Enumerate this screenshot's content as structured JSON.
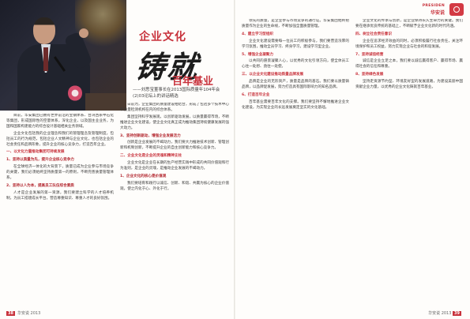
{
  "header": {
    "badge_en": "PRESIDEN",
    "badge_cn": "华安说"
  },
  "article": {
    "kicker": "企业文化",
    "big_title": "铸就",
    "subhead": "百年基业",
    "byline": "——刘思宝董事长在2013国际质量年104年会(2)03论坛上的讲话精选"
  },
  "left_page": {
    "col1": [
      {
        "type": "p",
        "text": "目前，华安集团已拥有世界前沿的宝钢体系、台湾西系中石化等集团，形成国际性的空量体系，深化企业，以及国主业业务，为国和国家构建能力的综合设计基础相关业务领域。"
      },
      {
        "type": "p",
        "text": "企业文化包括我的企业理念和我们的管理理念及管理制度，包括员工的行为规范，包括企业人文精神与企业文化，也包括企业的社会责任和品牌形象，提升企业的核心竞争力，打造百年企业。"
      },
      {
        "type": "h",
        "text": "一、以文化力量推动集团可持续发展"
      },
      {
        "type": "hsub",
        "text": "1、坚持以质量为先，提升企业核心竞争力"
      },
      {
        "type": "p",
        "text": "在全球经济一体化的大背景下，质量已成为企业参与市场竞争的关键，我们必须始终坚持质量第一的原则，不断完善质量管理体系。"
      },
      {
        "type": "hsub",
        "text": "2、坚持以人为本，提高员工队伍综合素质"
      },
      {
        "type": "p",
        "text": "人才是企业发展的第一资源，我们要建立科学的人才培养机制，为员工搭建成长平台，营造尊重知识、尊重人才的良好氛围。"
      }
    ],
    "col2": [
      {
        "type": "p",
        "text": "日前为，企业集团的质量建设相结合，形成了包括多个技术中心和质量检测机构在内的综合体系。"
      },
      {
        "type": "p",
        "text": "集团坚持科学发展观，以创新驱动发展，以质量赢得市场，不断推进企业文化建设，使企业文化真正成为推动集团持续健康发展的强大动力。"
      },
      {
        "type": "hsub",
        "text": "3、坚持创新驱动，增强企业发展活力"
      },
      {
        "type": "p",
        "text": "创新是企业发展的不竭动力，我们要大力推进技术创新、管理创新和机制创新，不断提升企业的自主创新能力和核心竞争力。"
      },
      {
        "type": "h",
        "text": "二、企业文化是企业的灵魂和精神支柱"
      },
      {
        "type": "p",
        "text": "企业文化是企业在长期的生产经营实践中形成的共同价值观和行为准则，是企业的灵魂，是推动企业发展的不竭动力。"
      },
      {
        "type": "hsub",
        "text": "1、企业文化的核心是价值观"
      },
      {
        "type": "p",
        "text": "我们要培育和践行以诚信、创新、和谐、共赢为核心的企业价值观，使之内化于心、外化于行。"
      }
    ]
  },
  "right_page": {
    "col1": [
      {
        "type": "p",
        "text": "领先的质量，是企业参与市场竞争的通行证。华安集团始终把质量作为企业的生命线，不断加强全面质量管理。"
      },
      {
        "type": "hnum",
        "text": "4、建立学习型组织"
      },
      {
        "type": "p",
        "text": "企业文化建设需要每一位员工的积极参与，我们要营造浓厚的学习氛围，推动全员学习、终身学习，建设学习型企业。"
      },
      {
        "type": "hnum",
        "text": "5、增强企业凝聚力"
      },
      {
        "type": "p",
        "text": "以共同的愿景凝聚人心，以优秀的文化引领方向，使全体员工心往一处想、劲往一处使。"
      },
      {
        "type": "h",
        "text": "三、以企业文化建设推动质量品牌发展"
      },
      {
        "type": "p",
        "text": "品牌是企业的无形资产，质量是品牌的基石。我们要以质量铸品牌，以品牌促发展，努力打造具有国际影响力的知名品牌。"
      },
      {
        "type": "hnum",
        "text": "6、打造百年企业"
      },
      {
        "type": "p",
        "text": "百年基业需要百年文化的支撑。我们要坚持不懈地推进企业文化建设，为实现企业的长远发展奠定坚实的文化基础。"
      }
    ],
    "col2": [
      {
        "type": "p",
        "text": "企业文化的传承与创新，是企业保持长久生命力的关键。我们要在继承优良传统的基础上，不断赋予企业文化新的时代内涵。"
      },
      {
        "type": "h",
        "text": "四、树立社会责任意识"
      },
      {
        "type": "p",
        "text": "企业在追求经济效益的同时，必须积极履行社会责任，关注环境保护和员工权益，努力实现企业与社会的和谐发展。"
      },
      {
        "type": "hnum",
        "text": "7、坚持诚信经营"
      },
      {
        "type": "p",
        "text": "诚信是企业立足之本，我们要以诚信赢得客户、赢得市场、赢得社会的信任和尊重。"
      },
      {
        "type": "hnum",
        "text": "8、坚持绿色发展"
      },
      {
        "type": "p",
        "text": "坚持走资源节约型、环境友好型的发展道路，为建设美丽中国贡献企业力量，以优秀的企业文化铸就百年基业。"
      }
    ]
  },
  "footer": {
    "left_num": "38",
    "left_text": "华安说 2013",
    "right_num": "39",
    "right_text": "华安说 2013"
  }
}
